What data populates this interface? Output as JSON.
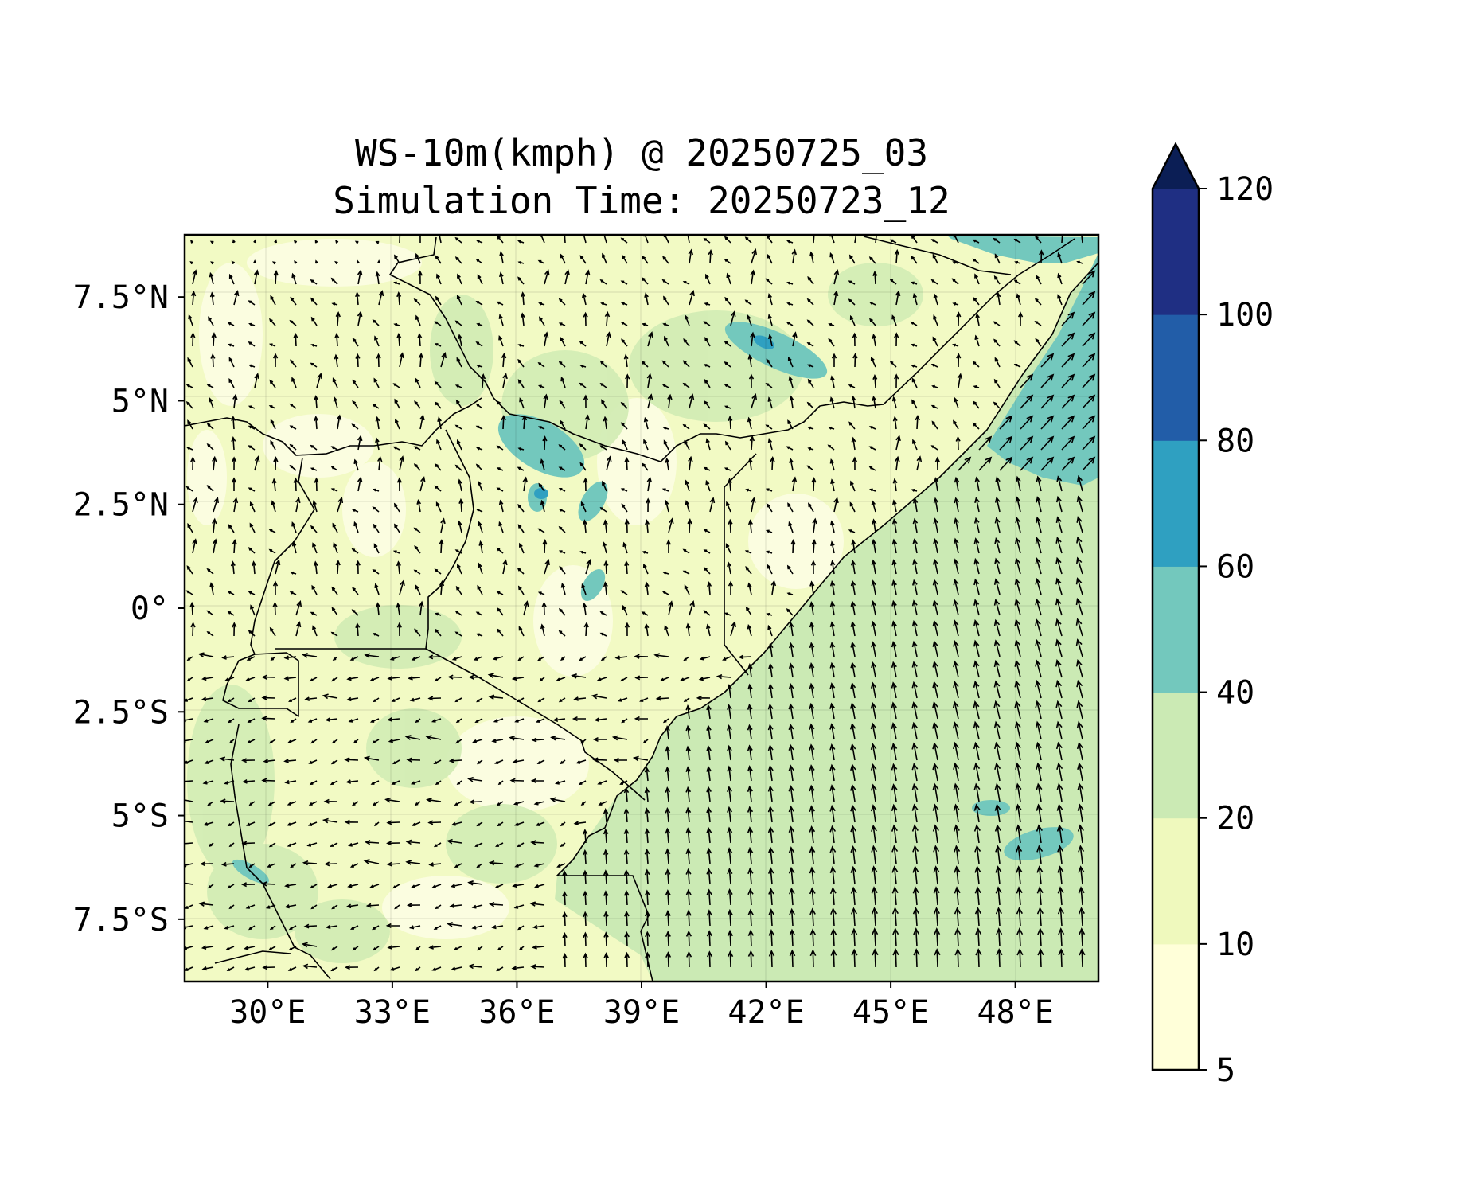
{
  "title": {
    "line1": "WS-10m(kmph) @ 20250725_03",
    "line2": "Simulation Time: 20250723_12"
  },
  "chart_data": {
    "type": "heatmap",
    "variable": "WS-10m(kmph)",
    "xlim": [
      28,
      50
    ],
    "ylim": [
      -9,
      9
    ],
    "x_ticks": [
      {
        "value": 30,
        "label": "30°E"
      },
      {
        "value": 33,
        "label": "33°E"
      },
      {
        "value": 36,
        "label": "36°E"
      },
      {
        "value": 39,
        "label": "39°E"
      },
      {
        "value": 42,
        "label": "42°E"
      },
      {
        "value": 45,
        "label": "45°E"
      },
      {
        "value": 48,
        "label": "48°E"
      }
    ],
    "y_ticks": [
      {
        "value": 7.5,
        "label": "7.5°N"
      },
      {
        "value": 5,
        "label": "5°N"
      },
      {
        "value": 2.5,
        "label": "2.5°N"
      },
      {
        "value": 0,
        "label": "0°"
      },
      {
        "value": -2.5,
        "label": "2.5°S"
      },
      {
        "value": -5,
        "label": "5°S"
      },
      {
        "value": -7.5,
        "label": "7.5°S"
      }
    ],
    "grid": true,
    "colorbar": {
      "placement": "right",
      "extend": "max",
      "levels": [
        5,
        10,
        20,
        40,
        60,
        80,
        100,
        120
      ],
      "labels": [
        "5",
        "10",
        "20",
        "40",
        "60",
        "80",
        "100",
        "120"
      ],
      "colors": [
        "#ffffd9",
        "#eff9bd",
        "#cbeab4",
        "#73c8bd",
        "#2fa0c1",
        "#225da8",
        "#1f2f83"
      ],
      "extend_color": "#0b1e55"
    },
    "regions": {
      "land_low": "10-20",
      "land_patches": "20-40",
      "ocean": "20-40",
      "highland_jets": "40-80"
    }
  },
  "colors": {
    "land": "#f2fac4",
    "land_light": "#fbfde0",
    "land_green": "#d3edb5",
    "ocean": "#cbeab4",
    "teal": "#73c8bd",
    "blue": "#2fa0c1",
    "border": "#000000",
    "arrow": "#000000"
  }
}
